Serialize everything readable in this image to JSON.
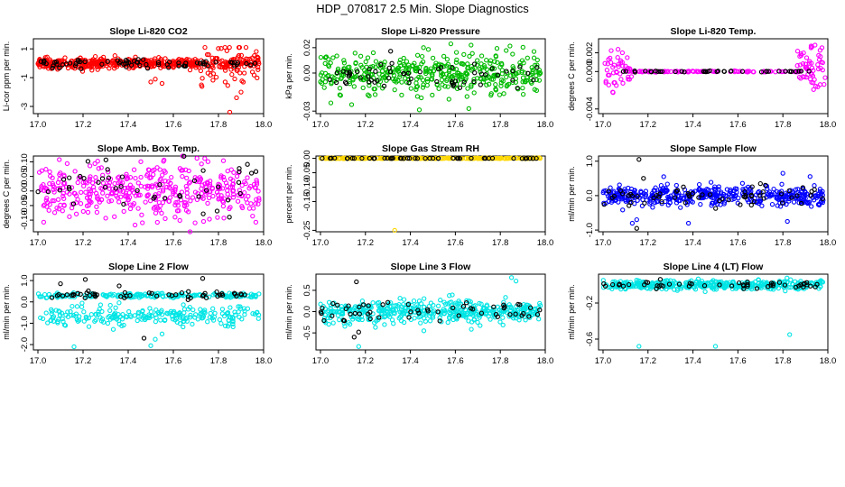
{
  "figure_title": "HDP_070817  2.5 Min. Slope Diagnostics",
  "chart_data": [
    {
      "type": "scatter",
      "title": "Slope Li-820 CO2",
      "ylabel": "Li-cor ppm per min.",
      "xlim": [
        16.98,
        18.0
      ],
      "ylim": [
        -3.5,
        1.7
      ],
      "xticks": [
        "17.0",
        "17.2",
        "17.4",
        "17.6",
        "17.8",
        "18.0"
      ],
      "yticks": [
        {
          "v": 1,
          "label": "1"
        },
        {
          "v": -1,
          "label": "-1"
        },
        {
          "v": -3,
          "label": "-3"
        }
      ],
      "series": [
        {
          "name": "all",
          "color": "#ff0000",
          "n": 520,
          "center": 0.0,
          "spread": 0.18,
          "tail": {
            "from": 17.72,
            "extra": 0.9,
            "min": -3.4,
            "max": 1.1
          },
          "outliers": [
            [
              17.52,
              -1.1
            ],
            [
              17.55,
              -1.4
            ],
            [
              17.5,
              -1.3
            ],
            [
              17.85,
              -3.4
            ],
            [
              17.9,
              -2.0
            ],
            [
              17.88,
              -2.4
            ]
          ]
        },
        {
          "name": "selected",
          "color": "#000000",
          "n": 70,
          "center": 0.0,
          "spread": 0.15
        }
      ]
    },
    {
      "type": "scatter",
      "title": "Slope Li-820 Pressure",
      "ylabel": "kPa per min.",
      "xlim": [
        16.98,
        18.0
      ],
      "ylim": [
        -0.032,
        0.027
      ],
      "xticks": [
        "17.0",
        "17.2",
        "17.4",
        "17.6",
        "17.8",
        "18.0"
      ],
      "yticks": [
        {
          "v": 0.02,
          "label": "0.02"
        },
        {
          "v": 0.0,
          "label": "0.00"
        },
        {
          "v": -0.03,
          "label": "-0.03"
        }
      ],
      "series": [
        {
          "name": "all",
          "color": "#00bb00",
          "n": 420,
          "center": 0.0,
          "spread": 0.008,
          "outliers": [
            [
              17.44,
              -0.029
            ],
            [
              17.66,
              -0.028
            ],
            [
              17.58,
              0.023
            ],
            [
              17.67,
              0.022
            ],
            [
              17.95,
              0.017
            ]
          ]
        },
        {
          "name": "selected",
          "color": "#000000",
          "n": 60,
          "center": -0.001,
          "spread": 0.006
        }
      ]
    },
    {
      "type": "scatter",
      "title": "Slope Li-820 Temp.",
      "ylabel": "degrees C per min.",
      "xlim": [
        16.98,
        18.0
      ],
      "ylim": [
        -0.0045,
        0.0035
      ],
      "xticks": [
        "17.0",
        "17.2",
        "17.4",
        "17.6",
        "17.8",
        "18.0"
      ],
      "yticks": [
        {
          "v": 0.002,
          "label": "0.002"
        },
        {
          "v": 0.0,
          "label": "0.000"
        },
        {
          "v": -0.004,
          "label": "-0.004"
        }
      ],
      "series": [
        {
          "name": "line",
          "color": "#ff00ff",
          "n": 110,
          "center": 0.0,
          "spread": 3e-05,
          "range": [
            17.1,
            17.88
          ]
        },
        {
          "name": "left-noise",
          "color": "#ff00ff",
          "n": 45,
          "center": 0.0,
          "spread": 0.0011,
          "range": [
            17.0,
            17.13
          ]
        },
        {
          "name": "right-noise",
          "color": "#ff00ff",
          "n": 55,
          "center": 0.0003,
          "spread": 0.0013,
          "range": [
            17.86,
            17.99
          ]
        },
        {
          "name": "selected",
          "color": "#000000",
          "n": 40,
          "center": 0.0,
          "spread": 3e-05,
          "range": [
            17.08,
            17.94
          ]
        }
      ]
    },
    {
      "type": "scatter",
      "title": "Slope Amb. Box Temp.",
      "ylabel": "degrees C per min.",
      "xlim": [
        16.98,
        18.0
      ],
      "ylim": [
        -0.14,
        0.12
      ],
      "xticks": [
        "17.0",
        "17.2",
        "17.4",
        "17.6",
        "17.8",
        "18.0"
      ],
      "yticks": [
        {
          "v": 0.1,
          "label": "0.10"
        },
        {
          "v": 0.05,
          "label": "0.05"
        },
        {
          "v": 0.0,
          "label": "0.00"
        },
        {
          "v": -0.05,
          "label": "-0.05"
        },
        {
          "v": -0.1,
          "label": "-0.10"
        }
      ],
      "series": [
        {
          "name": "all",
          "color": "#ff00ff",
          "n": 420,
          "center": 0.0,
          "spread": 0.045
        },
        {
          "name": "selected",
          "color": "#000000",
          "n": 45,
          "center": 0.02,
          "spread": 0.04
        }
      ]
    },
    {
      "type": "scatter",
      "title": "Slope Gas Stream RH",
      "ylabel": "percent per min.",
      "xlim": [
        16.98,
        18.0
      ],
      "ylim": [
        -0.255,
        0.008
      ],
      "xticks": [
        "17.0",
        "17.2",
        "17.4",
        "17.6",
        "17.8",
        "18.0"
      ],
      "yticks": [
        {
          "v": 0.0,
          "label": "0.00"
        },
        {
          "v": -0.05,
          "label": "-0.05"
        },
        {
          "v": -0.1,
          "label": "-0.10"
        },
        {
          "v": -0.15,
          "label": "-0.15"
        },
        {
          "v": -0.25,
          "label": "-0.25"
        }
      ],
      "series": [
        {
          "name": "all",
          "color": "#ffd700",
          "n": 300,
          "center": 0.0,
          "spread": 0.0005,
          "outliers": [
            [
              17.33,
              -0.25
            ]
          ]
        },
        {
          "name": "selected",
          "color": "#000000",
          "n": 45,
          "center": 0.0,
          "spread": 0.0003
        }
      ]
    },
    {
      "type": "scatter",
      "title": "Slope Sample Flow",
      "ylabel": "ml/min per min.",
      "xlim": [
        16.98,
        18.0
      ],
      "ylim": [
        -1.05,
        1.15
      ],
      "xticks": [
        "17.0",
        "17.2",
        "17.4",
        "17.6",
        "17.8",
        "18.0"
      ],
      "yticks": [
        {
          "v": 1.0,
          "label": "1.0"
        },
        {
          "v": 0.0,
          "label": "0.0"
        },
        {
          "v": -1.0,
          "label": "-1.0"
        }
      ],
      "series": [
        {
          "name": "all",
          "color": "#0000ff",
          "n": 420,
          "center": 0.0,
          "spread": 0.14,
          "outliers": [
            [
              17.15,
              -0.7
            ],
            [
              17.13,
              -0.8
            ],
            [
              17.38,
              -0.8
            ],
            [
              17.27,
              0.55
            ],
            [
              17.8,
              0.65
            ],
            [
              17.82,
              -0.75
            ]
          ]
        },
        {
          "name": "selected",
          "color": "#000000",
          "n": 60,
          "center": -0.05,
          "spread": 0.15,
          "outliers": [
            [
              17.16,
              1.05
            ],
            [
              17.15,
              -0.95
            ],
            [
              17.18,
              0.5
            ]
          ]
        }
      ]
    },
    {
      "type": "scatter",
      "title": "Slope Line 2 Flow",
      "ylabel": "ml/min per min.",
      "xlim": [
        16.98,
        18.0
      ],
      "ylim": [
        -2.25,
        1.3
      ],
      "xticks": [
        "17.0",
        "17.2",
        "17.4",
        "17.6",
        "17.8",
        "18.0"
      ],
      "yticks": [
        {
          "v": 1.0,
          "label": "1.0"
        },
        {
          "v": 0.0,
          "label": "0.0"
        },
        {
          "v": -1.0,
          "label": "-1.0"
        },
        {
          "v": -2.0,
          "label": "-2.0"
        }
      ],
      "series": [
        {
          "name": "upper",
          "color": "#00e5e5",
          "n": 200,
          "center": 0.3,
          "spread": 0.05
        },
        {
          "name": "lower",
          "color": "#00e5e5",
          "n": 230,
          "center": -0.65,
          "spread": 0.22,
          "outliers": [
            [
              17.16,
              -2.1
            ],
            [
              17.5,
              -2.05
            ],
            [
              17.52,
              -1.75
            ],
            [
              17.55,
              -1.5
            ]
          ]
        },
        {
          "name": "selected",
          "color": "#000000",
          "n": 50,
          "center": 0.32,
          "spread": 0.08,
          "outliers": [
            [
              17.21,
              1.05
            ],
            [
              17.36,
              0.75
            ],
            [
              17.73,
              1.1
            ],
            [
              17.47,
              -1.7
            ],
            [
              17.1,
              0.85
            ]
          ]
        }
      ]
    },
    {
      "type": "scatter",
      "title": "Slope Line 3 Flow",
      "ylabel": "ml/min per min.",
      "xlim": [
        16.98,
        18.0
      ],
      "ylim": [
        -0.9,
        0.88
      ],
      "xticks": [
        "17.0",
        "17.2",
        "17.4",
        "17.6",
        "17.8",
        "18.0"
      ],
      "yticks": [
        {
          "v": 0.5,
          "label": "0.5"
        },
        {
          "v": 0.0,
          "label": "0.0"
        },
        {
          "v": -0.5,
          "label": "-0.5"
        }
      ],
      "series": [
        {
          "name": "all",
          "color": "#00e5e5",
          "n": 430,
          "center": 0.0,
          "spread": 0.13,
          "outliers": [
            [
              17.17,
              -0.82
            ],
            [
              17.85,
              0.8
            ],
            [
              17.87,
              0.72
            ],
            [
              17.44,
              0.25
            ],
            [
              17.46,
              -0.45
            ]
          ]
        },
        {
          "name": "selected",
          "color": "#000000",
          "n": 55,
          "center": 0.0,
          "spread": 0.12,
          "outliers": [
            [
              17.16,
              0.7
            ],
            [
              17.15,
              -0.6
            ],
            [
              17.17,
              -0.48
            ]
          ]
        }
      ]
    },
    {
      "type": "scatter",
      "title": "Slope Line 4 (LT) Flow",
      "ylabel": "ml/min per min.",
      "xlim": [
        16.98,
        18.0
      ],
      "ylim": [
        -0.72,
        0.12
      ],
      "xticks": [
        "17.0",
        "17.2",
        "17.4",
        "17.6",
        "17.8",
        "18.0"
      ],
      "yticks": [
        {
          "v": -0.2,
          "label": "-0.2"
        },
        {
          "v": -0.6,
          "label": "-0.6"
        }
      ],
      "series": [
        {
          "name": "all",
          "color": "#00e5e5",
          "n": 420,
          "center": 0.0,
          "spread": 0.025,
          "outliers": [
            [
              17.16,
              -0.68
            ],
            [
              17.5,
              -0.68
            ],
            [
              17.83,
              -0.55
            ]
          ]
        },
        {
          "name": "selected",
          "color": "#000000",
          "n": 50,
          "center": 0.0,
          "spread": 0.02
        }
      ]
    }
  ]
}
